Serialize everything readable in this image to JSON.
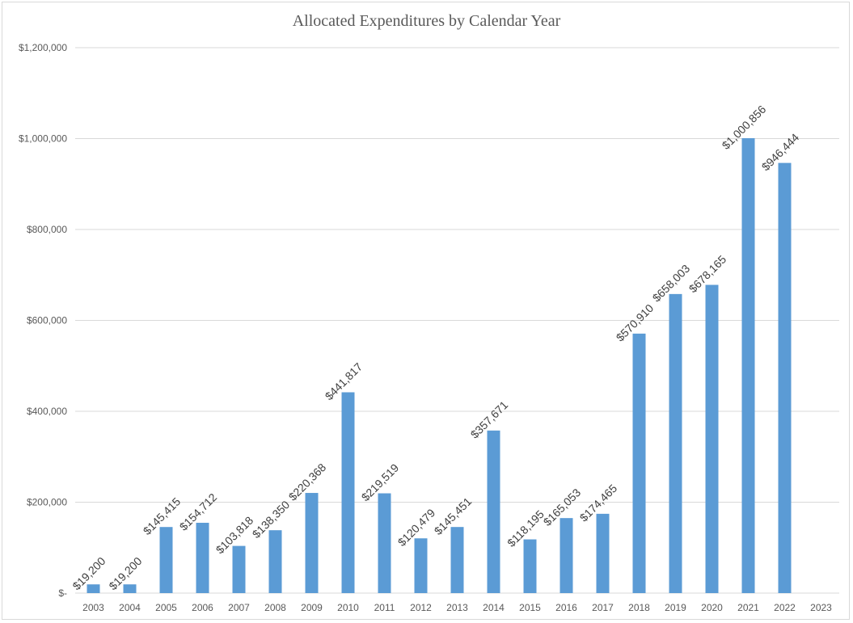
{
  "chart_data": {
    "type": "bar",
    "title": "Allocated Expenditures by Calendar Year",
    "xlabel": "",
    "ylabel": "",
    "categories": [
      "2003",
      "2004",
      "2005",
      "2006",
      "2007",
      "2008",
      "2009",
      "2010",
      "2011",
      "2012",
      "2013",
      "2014",
      "2015",
      "2016",
      "2017",
      "2018",
      "2019",
      "2020",
      "2021",
      "2022",
      "2023"
    ],
    "values": [
      19200,
      19200,
      145415,
      154712,
      103818,
      138350,
      220368,
      441817,
      219519,
      120479,
      145451,
      357671,
      118195,
      165053,
      174465,
      570910,
      658003,
      678165,
      1000856,
      946444,
      null
    ],
    "data_labels": [
      "$19,200",
      "$19,200",
      "$145,415",
      "$154,712",
      "$103,818",
      "$138,350",
      "$220,368",
      "$441,817",
      "$219,519",
      "$120,479",
      "$145,451",
      "$357,671",
      "$118,195",
      "$165,053",
      "$174,465",
      "$570,910",
      "$658,003",
      "$678,165",
      "$1,000,856",
      "$946,444",
      ""
    ],
    "ylim": [
      0,
      1200000
    ],
    "yticks": [
      0,
      200000,
      400000,
      600000,
      800000,
      1000000,
      1200000
    ],
    "ytick_labels": [
      "$-",
      "$200,000",
      "$400,000",
      "$600,000",
      "$800,000",
      "$1,000,000",
      "$1,200,000"
    ],
    "grid": true,
    "legend": "none",
    "bar_color": "#5b9bd5",
    "grid_color": "#d9d9d9"
  }
}
